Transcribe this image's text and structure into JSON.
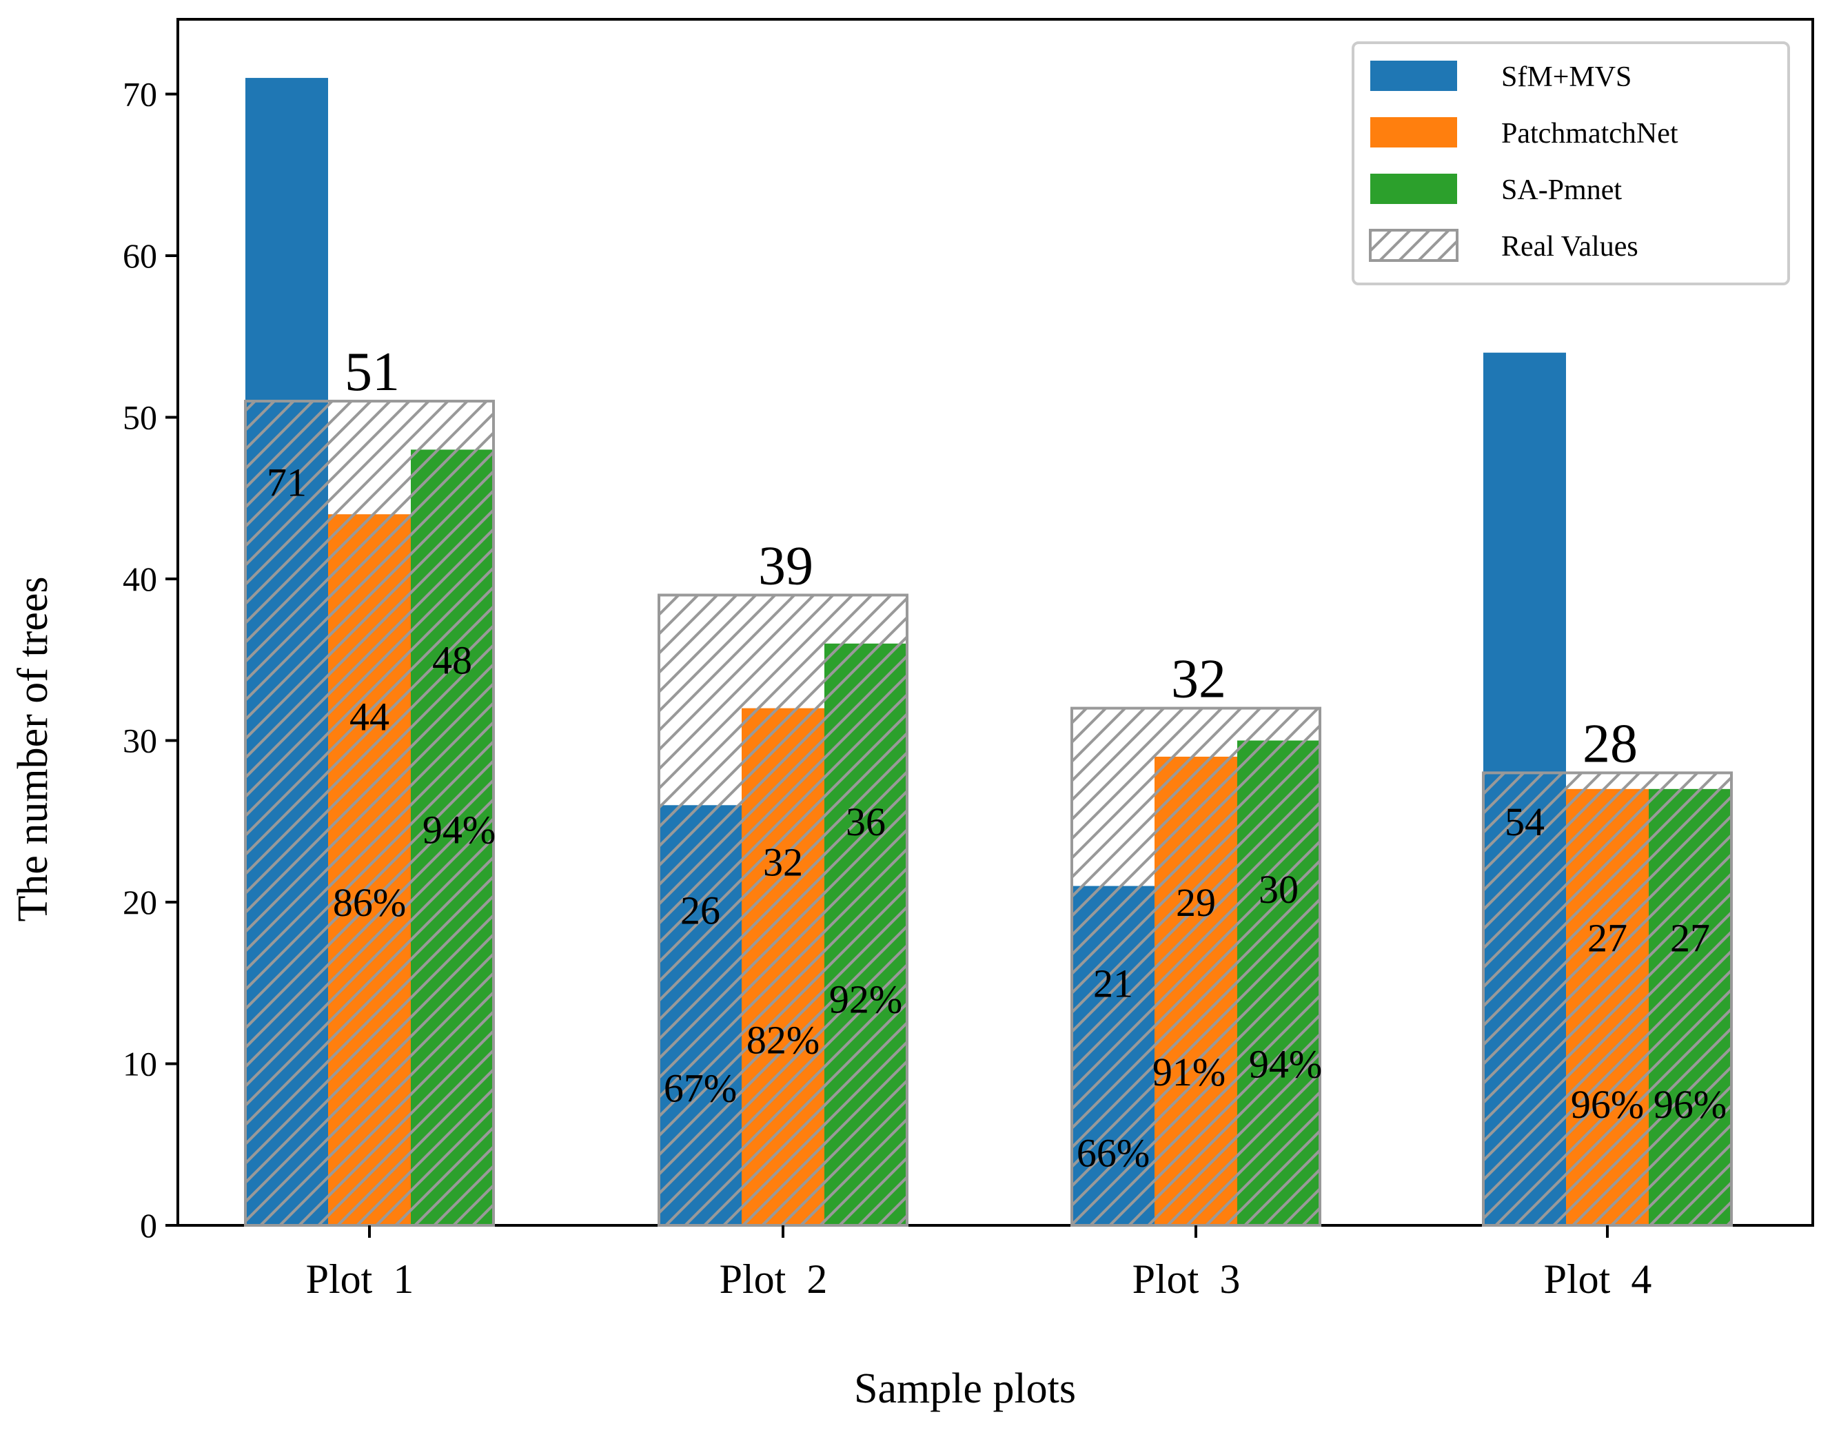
{
  "chart_data": {
    "type": "bar",
    "title": "",
    "xlabel": "Sample plots",
    "ylabel": "The number of  trees",
    "ylim": [
      0,
      75
    ],
    "yticks": [
      0,
      10,
      20,
      30,
      40,
      50,
      60,
      70
    ],
    "categories": [
      "Plot  1",
      "Plot  2",
      "Plot  3",
      "Plot  4"
    ],
    "series": [
      {
        "name": "SfM+MVS",
        "color": "#1f77b4",
        "values": [
          71,
          26,
          21,
          54
        ],
        "percent_labels": [
          "",
          "67%",
          "66%",
          ""
        ]
      },
      {
        "name": "PatchmatchNet",
        "color": "#ff7f0e",
        "values": [
          44,
          32,
          29,
          27
        ],
        "percent_labels": [
          "86%",
          "82%",
          "91%",
          "96%"
        ]
      },
      {
        "name": "SA-Pmnet",
        "color": "#2ca02c",
        "values": [
          48,
          36,
          30,
          27
        ],
        "percent_labels": [
          "94%",
          "92%",
          "94%",
          "96%"
        ]
      }
    ],
    "real_values": {
      "name": "Real Values",
      "values": [
        51,
        39,
        32,
        28
      ],
      "edge_color": "#999999",
      "hatch": "/"
    },
    "legend": {
      "position": "top-right",
      "entries": [
        "SfM+MVS",
        "PatchmatchNet",
        "SA-Pmnet",
        "Real Values"
      ]
    },
    "grid": false
  }
}
